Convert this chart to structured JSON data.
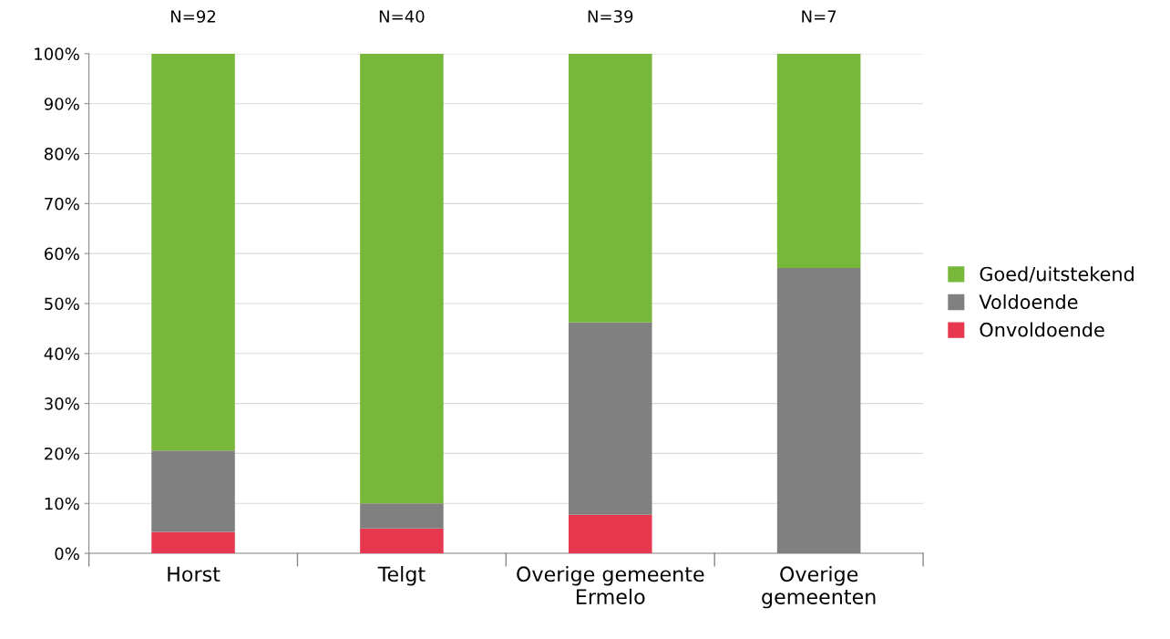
{
  "chart_data": {
    "type": "bar",
    "stacked": true,
    "categories": [
      "Horst",
      "Telgt",
      "Overige gemeente\nErmelo",
      "Overige\ngemeenten"
    ],
    "series": [
      {
        "name": "Onvoldoende",
        "color": "#e8384f",
        "values": [
          4.3,
          5,
          7.7,
          0
        ]
      },
      {
        "name": "Voldoende",
        "color": "#808080",
        "values": [
          16.3,
          5,
          38.5,
          57.1
        ]
      },
      {
        "name": "Goed/uitstekend",
        "color": "#77b83a",
        "values": [
          79.4,
          90,
          53.8,
          42.9
        ]
      }
    ],
    "ylim": [
      0,
      100
    ],
    "yticks": [
      {
        "value": 0,
        "label": "0%"
      },
      {
        "value": 10,
        "label": "10%"
      },
      {
        "value": 20,
        "label": "20%"
      },
      {
        "value": 30,
        "label": "30%"
      },
      {
        "value": 40,
        "label": "40%"
      },
      {
        "value": 50,
        "label": "50%"
      },
      {
        "value": 60,
        "label": "60%"
      },
      {
        "value": 70,
        "label": "70%"
      },
      {
        "value": 80,
        "label": "80%"
      },
      {
        "value": 90,
        "label": "90%"
      },
      {
        "value": 100,
        "label": "100%"
      }
    ],
    "grid": "y",
    "legend": "right",
    "annotations": [
      {
        "text": "N=92",
        "x": "Horst",
        "y": 100
      },
      {
        "text": "N=40",
        "x": "Telgt",
        "y": 100
      },
      {
        "text": "N=39",
        "x": "Overige gemeente\nErmelo",
        "y": 100
      },
      {
        "text": "N=7",
        "x": "Overige\ngemeenten",
        "y": 100
      }
    ]
  }
}
